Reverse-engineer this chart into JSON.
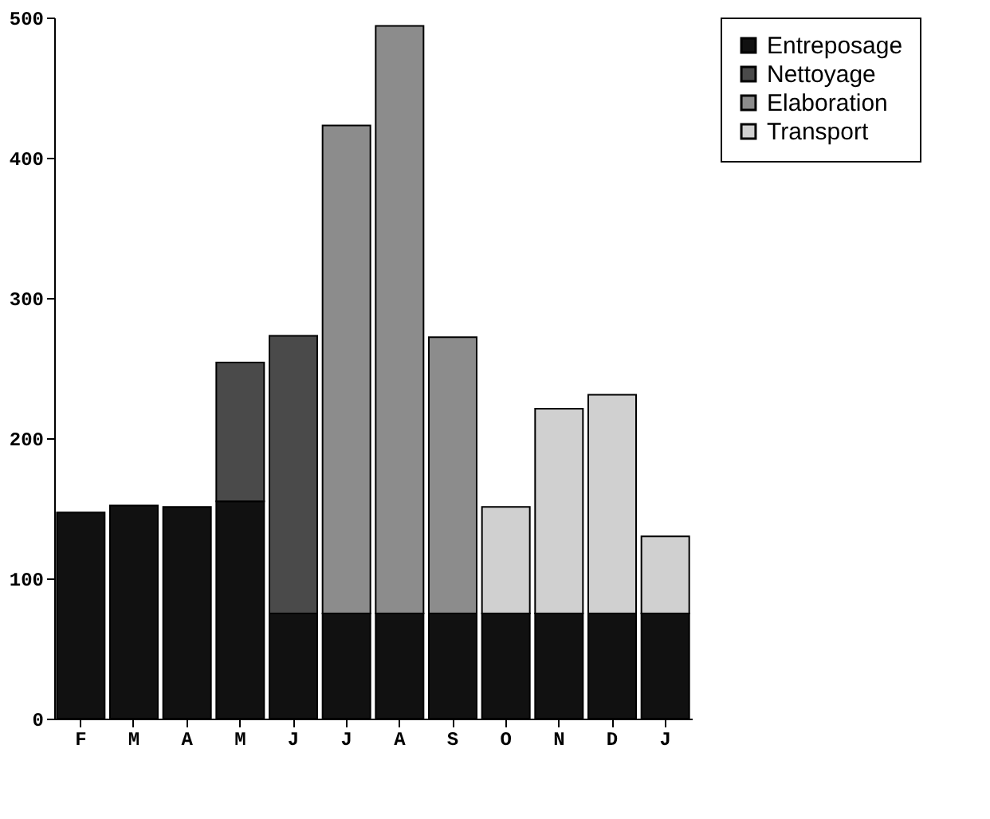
{
  "chart_data": {
    "type": "bar",
    "stacked": true,
    "categories": [
      "F",
      "M",
      "A",
      "M",
      "J",
      "J",
      "A",
      "S",
      "O",
      "N",
      "D",
      "J"
    ],
    "series": [
      {
        "name": "Entreposage",
        "color": "#111111",
        "values": [
          147,
          152,
          151,
          155,
          75,
          75,
          75,
          75,
          75,
          75,
          75,
          75
        ]
      },
      {
        "name": "Nettoyage",
        "color": "#4a4a4a",
        "values": [
          null,
          null,
          null,
          99,
          198,
          null,
          null,
          null,
          null,
          null,
          null,
          null
        ]
      },
      {
        "name": "Elaboration",
        "color": "#8c8c8c",
        "values": [
          null,
          null,
          null,
          null,
          null,
          348,
          419,
          197,
          null,
          null,
          null,
          null
        ]
      },
      {
        "name": "Transport",
        "color": "#d0d0d0",
        "values": [
          null,
          null,
          null,
          null,
          null,
          null,
          null,
          null,
          76,
          146,
          156,
          55
        ]
      }
    ],
    "ylim": [
      0,
      500
    ],
    "yticks": [
      0,
      100,
      200,
      300,
      400,
      500
    ],
    "grid": false,
    "legend": "right"
  }
}
